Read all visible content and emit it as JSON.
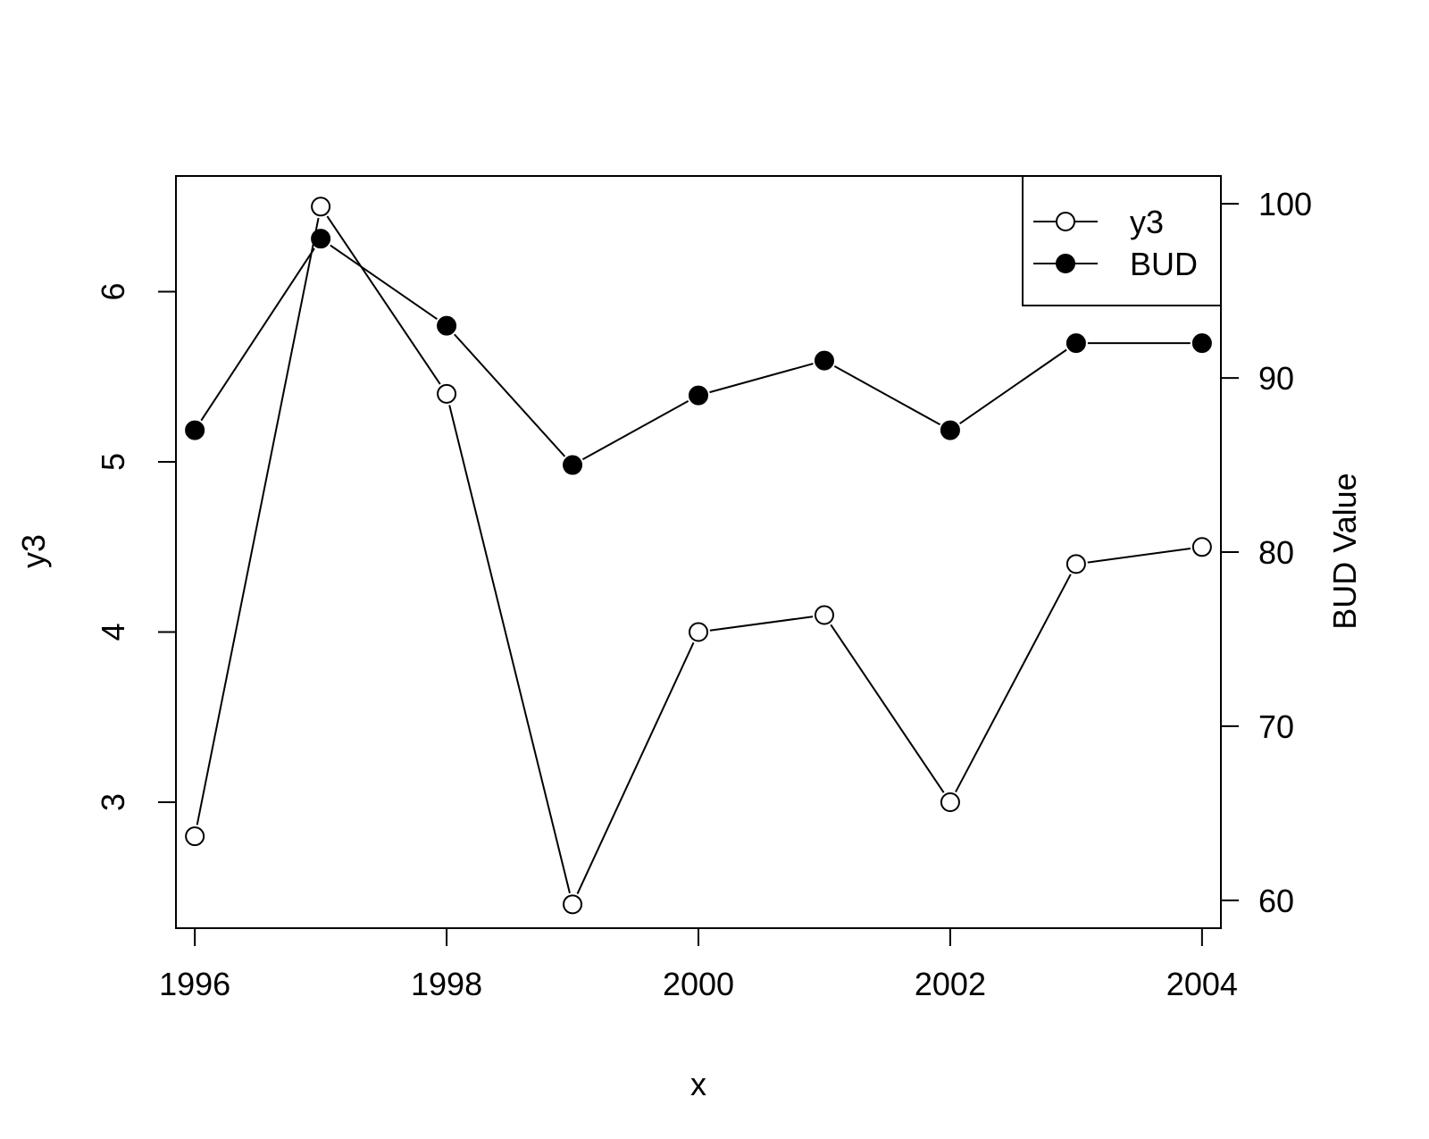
{
  "chart_data": {
    "type": "line",
    "x": [
      1996,
      1997,
      1998,
      1999,
      2000,
      2001,
      2002,
      2003,
      2004
    ],
    "series": [
      {
        "name": "y3",
        "axis": "left",
        "marker": "open-circle",
        "values": [
          2.8,
          6.5,
          5.4,
          2.4,
          4.0,
          4.1,
          3.0,
          4.4,
          4.5
        ]
      },
      {
        "name": "BUD",
        "axis": "right",
        "marker": "filled-circle",
        "values": [
          87,
          98,
          93,
          85,
          89,
          91,
          87,
          92,
          92
        ]
      }
    ],
    "xlabel": "x",
    "ylabel_left": "y3",
    "ylabel_right": "BUD Value",
    "xlim": [
      1995.85,
      2004.15
    ],
    "ylim_left": [
      2.26,
      6.68
    ],
    "ylim_right": [
      58.4,
      101.6
    ],
    "xticks": [
      1996,
      1998,
      2000,
      2002,
      2004
    ],
    "yticks_left": [
      3,
      4,
      5,
      6
    ],
    "yticks_right": [
      60,
      70,
      80,
      90,
      100
    ],
    "legend_position": "top-right",
    "grid": false,
    "colors": {
      "line": "#000000",
      "background": "#ffffff"
    }
  }
}
